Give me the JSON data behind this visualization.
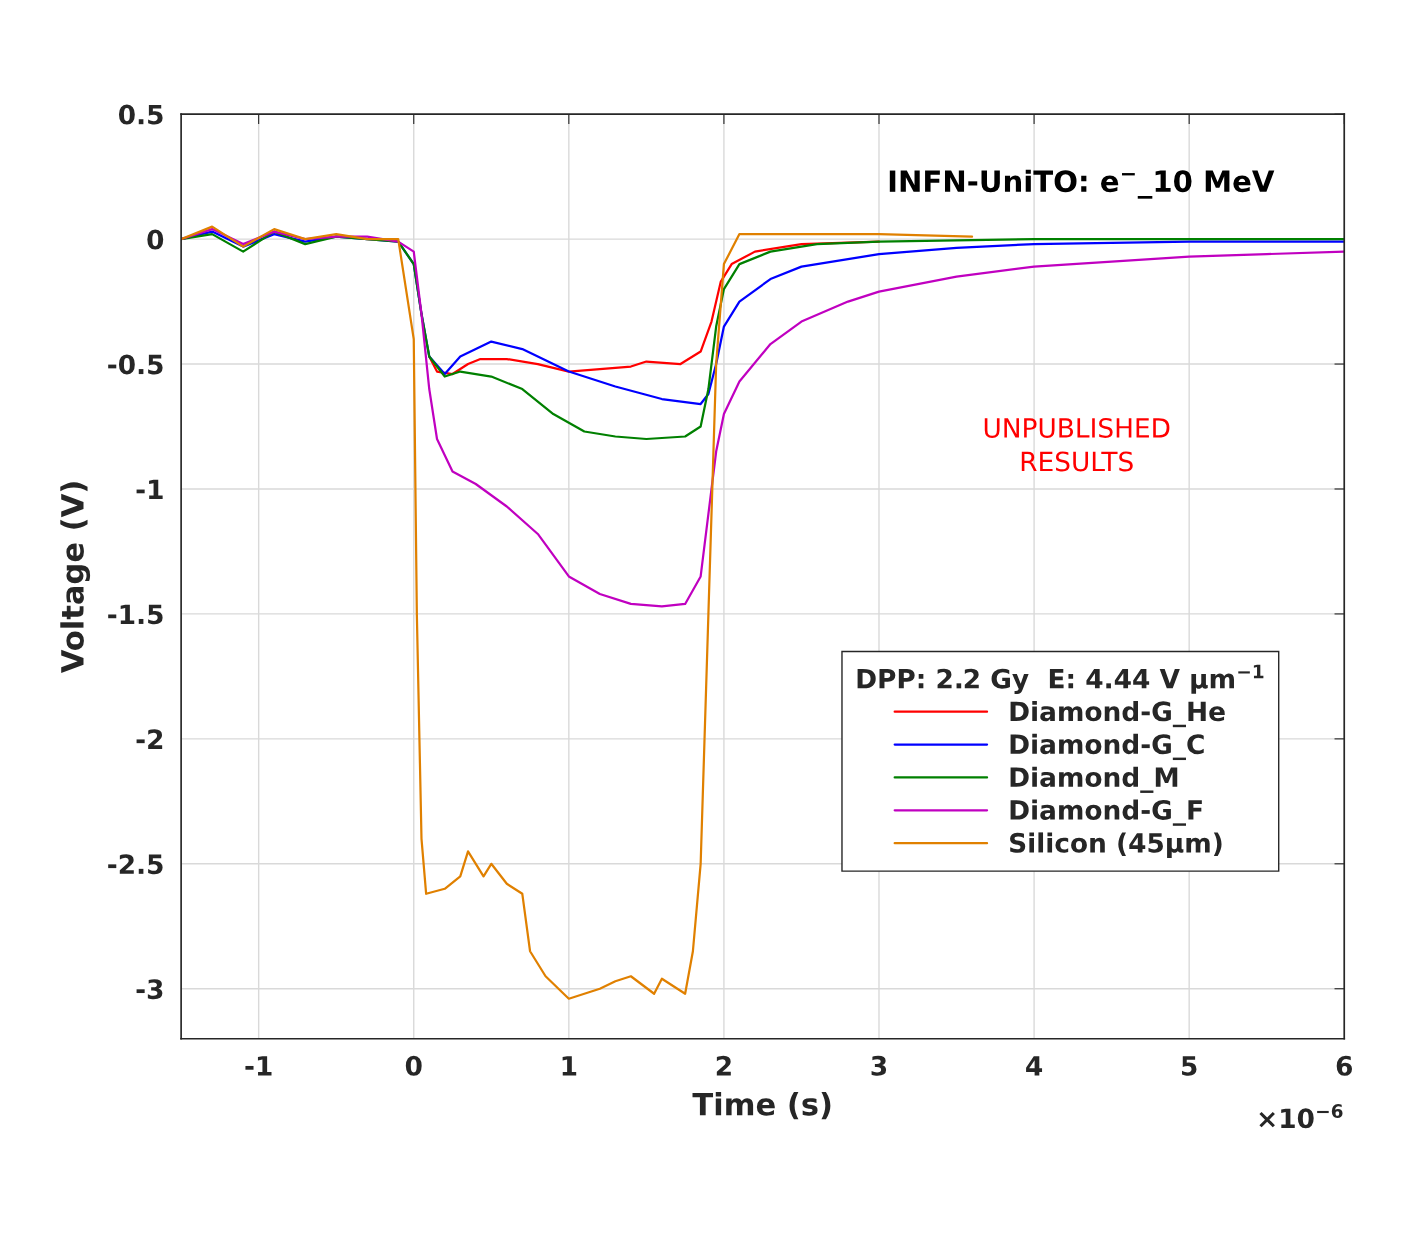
{
  "chart_data": {
    "type": "line",
    "xlabel": "Time (s)",
    "ylabel": "Voltage (V)",
    "legend_title": "DPP: 2.2 Gy  E: 4.44 V μm$^{−1}$",
    "annotations": [
      "INFN-UniTO: e$^{−}$_10 MeV",
      "UNPUBLISHED\nRESULTS",
      "×10$^{−6}$"
    ],
    "xlim": [
      -1.5,
      6
    ],
    "xticks": [
      -1,
      0,
      1,
      2,
      3,
      4,
      5,
      6
    ],
    "ylim": [
      -3.2,
      0.5
    ],
    "yticks": [
      0.5,
      0,
      -0.5,
      -1,
      -1.5,
      -2,
      -2.5,
      -3
    ],
    "grid": true,
    "legend": "right",
    "line_style": "solid",
    "marker": "none",
    "series": [
      {
        "name": "Diamond-G_He",
        "color": "#ff0000",
        "x": [
          0.1,
          0.15,
          0.25,
          0.35,
          0.43,
          0.6,
          0.8,
          1.0,
          1.2,
          1.4,
          1.5,
          1.72,
          1.85,
          1.92,
          1.98,
          2.05,
          2.2,
          2.5,
          3.0
        ],
        "values": [
          -0.47,
          -0.53,
          -0.54,
          -0.5,
          -0.48,
          -0.48,
          -0.5,
          -0.53,
          -0.52,
          -0.51,
          -0.49,
          -0.5,
          -0.45,
          -0.33,
          -0.17,
          -0.1,
          -0.05,
          -0.02,
          -0.01
        ]
      },
      {
        "name": "Diamond-G_C",
        "color": "#0000ff",
        "x": [
          -1.5,
          -1.3,
          -1.1,
          -0.9,
          -0.7,
          -0.5,
          -0.3,
          -0.1,
          0.0,
          0.05,
          0.1,
          0.2,
          0.3,
          0.5,
          0.7,
          1.0,
          1.3,
          1.6,
          1.85,
          1.9,
          1.95,
          2.0,
          2.1,
          2.3,
          2.5,
          3.0,
          3.5,
          4.0,
          5.0,
          6.0
        ],
        "values": [
          0.0,
          0.03,
          -0.03,
          0.02,
          -0.01,
          0.01,
          0.0,
          -0.01,
          -0.1,
          -0.3,
          -0.47,
          -0.54,
          -0.47,
          -0.41,
          -0.44,
          -0.53,
          -0.59,
          -0.64,
          -0.66,
          -0.62,
          -0.5,
          -0.35,
          -0.25,
          -0.16,
          -0.11,
          -0.06,
          -0.035,
          -0.02,
          -0.01,
          -0.01
        ]
      },
      {
        "name": "Diamond_M",
        "color": "#008000",
        "x": [
          -1.5,
          -1.3,
          -1.1,
          -0.9,
          -0.7,
          -0.5,
          -0.3,
          -0.1,
          0.0,
          0.05,
          0.1,
          0.2,
          0.3,
          0.5,
          0.7,
          0.9,
          1.1,
          1.3,
          1.5,
          1.75,
          1.85,
          1.9,
          1.95,
          2.0,
          2.1,
          2.3,
          2.6,
          3.0,
          4.0,
          6.0
        ],
        "values": [
          0.0,
          0.02,
          -0.05,
          0.03,
          -0.02,
          0.01,
          0.0,
          -0.01,
          -0.1,
          -0.3,
          -0.47,
          -0.55,
          -0.53,
          -0.55,
          -0.6,
          -0.7,
          -0.77,
          -0.79,
          -0.8,
          -0.79,
          -0.75,
          -0.6,
          -0.35,
          -0.2,
          -0.1,
          -0.05,
          -0.02,
          -0.01,
          0.0,
          0.0
        ]
      },
      {
        "name": "Diamond-G_F",
        "color": "#c000c0",
        "x": [
          -1.5,
          -1.3,
          -1.1,
          -0.9,
          -0.7,
          -0.5,
          -0.3,
          -0.1,
          0.0,
          0.05,
          0.1,
          0.15,
          0.25,
          0.4,
          0.6,
          0.8,
          1.0,
          1.2,
          1.4,
          1.6,
          1.75,
          1.85,
          1.9,
          1.95,
          2.0,
          2.1,
          2.3,
          2.5,
          2.8,
          3.0,
          3.5,
          4.0,
          4.5,
          5.0,
          5.5,
          6.0
        ],
        "values": [
          0.0,
          0.04,
          -0.02,
          0.03,
          0.0,
          0.01,
          0.01,
          -0.01,
          -0.05,
          -0.3,
          -0.6,
          -0.8,
          -0.93,
          -0.98,
          -1.07,
          -1.18,
          -1.35,
          -1.42,
          -1.46,
          -1.47,
          -1.46,
          -1.35,
          -1.1,
          -0.85,
          -0.7,
          -0.57,
          -0.42,
          -0.33,
          -0.25,
          -0.21,
          -0.15,
          -0.11,
          -0.09,
          -0.07,
          -0.06,
          -0.05
        ]
      },
      {
        "name": "Silicon (45μm)",
        "color": "#e08000",
        "x": [
          -1.5,
          -1.3,
          -1.1,
          -0.9,
          -0.7,
          -0.5,
          -0.3,
          -0.1,
          0.0,
          0.02,
          0.05,
          0.08,
          0.2,
          0.3,
          0.35,
          0.45,
          0.5,
          0.6,
          0.7,
          0.75,
          0.85,
          1.0,
          1.2,
          1.3,
          1.4,
          1.55,
          1.6,
          1.75,
          1.8,
          1.85,
          1.9,
          1.95,
          2.0,
          2.1,
          2.5,
          3.0,
          3.6
        ],
        "values": [
          0.0,
          0.05,
          -0.03,
          0.04,
          0.0,
          0.02,
          0.0,
          0.0,
          -0.4,
          -1.5,
          -2.4,
          -2.62,
          -2.6,
          -2.55,
          -2.45,
          -2.55,
          -2.5,
          -2.58,
          -2.62,
          -2.85,
          -2.95,
          -3.04,
          -3.0,
          -2.97,
          -2.95,
          -3.02,
          -2.96,
          -3.02,
          -2.85,
          -2.5,
          -1.5,
          -0.5,
          -0.1,
          0.02,
          0.02,
          0.02,
          0.01
        ]
      }
    ]
  }
}
